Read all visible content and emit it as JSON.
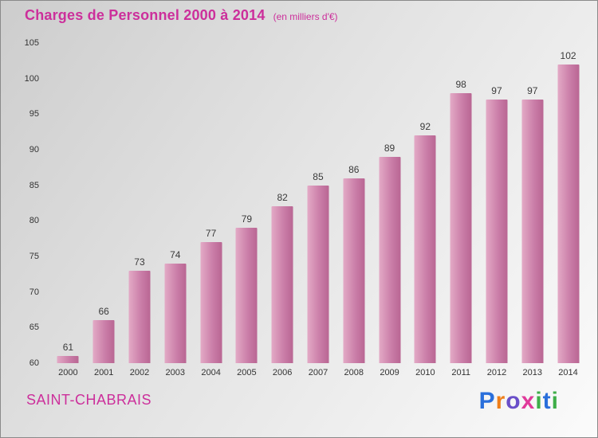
{
  "title": {
    "text": "Charges de Personnel 2000 à 2014",
    "subtitle": "(en milliers d'€)",
    "color": "#cc2f9b"
  },
  "footer": {
    "company": "SAINT-CHABRAIS"
  },
  "logo": {
    "name": "Proxiti",
    "letters": [
      {
        "ch": "P",
        "color": "#2a6fdb"
      },
      {
        "ch": "r",
        "color": "#ef7f1a"
      },
      {
        "ch": "o",
        "color": "#6a4fc9"
      },
      {
        "ch": "x",
        "color": "#e03a9a"
      },
      {
        "ch": "i",
        "color": "#3fae49"
      },
      {
        "ch": "t",
        "color": "#2a6fdb"
      },
      {
        "ch": "i",
        "color": "#3fae49"
      }
    ]
  },
  "chart_data": {
    "type": "bar",
    "title": "Charges de Personnel 2000 à 2014",
    "subtitle": "(en milliers d'€)",
    "categories": [
      "2000",
      "2001",
      "2002",
      "2003",
      "2004",
      "2005",
      "2006",
      "2007",
      "2008",
      "2009",
      "2010",
      "2011",
      "2012",
      "2013",
      "2014"
    ],
    "values": [
      61,
      66,
      73,
      74,
      77,
      79,
      82,
      85,
      86,
      89,
      92,
      98,
      97,
      97,
      102
    ],
    "xlabel": "",
    "ylabel": "",
    "ylim": [
      60,
      105
    ],
    "ytick_step": 5,
    "grid": false,
    "legend": false,
    "bar_color_light": "#e3aac6",
    "bar_color_dark": "#b96693",
    "value_label_color": "#3a3a3a",
    "background": "diagonal-gray-gradient"
  }
}
